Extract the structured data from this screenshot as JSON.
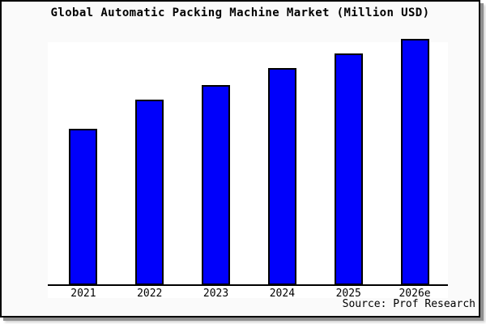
{
  "chart": {
    "title": "Global Automatic Packing Machine Market (Million USD)",
    "source": "Source: Prof Research"
  },
  "colors": {
    "bar_fill": "#0000fb",
    "bar_border": "#000000",
    "figure_background": "#fafafa",
    "plot_background": "#ffffff",
    "frame_border": "#000000",
    "text": "#000000"
  },
  "chart_data": {
    "type": "bar",
    "title": "Global Automatic Packing Machine Market (Million USD)",
    "categories": [
      "2021",
      "2022",
      "2023",
      "2024",
      "2025",
      "2026e"
    ],
    "values": [
      63,
      75,
      81,
      88,
      94,
      100
    ],
    "xlabel": "",
    "ylabel": "",
    "ylim": [
      0,
      100
    ],
    "units": "relative bar height, index 2026e = 100 (no numeric y-axis shown)",
    "grid": false,
    "legend": false,
    "y_axis_labels_visible": false,
    "annotation": "Source: Prof Research"
  }
}
